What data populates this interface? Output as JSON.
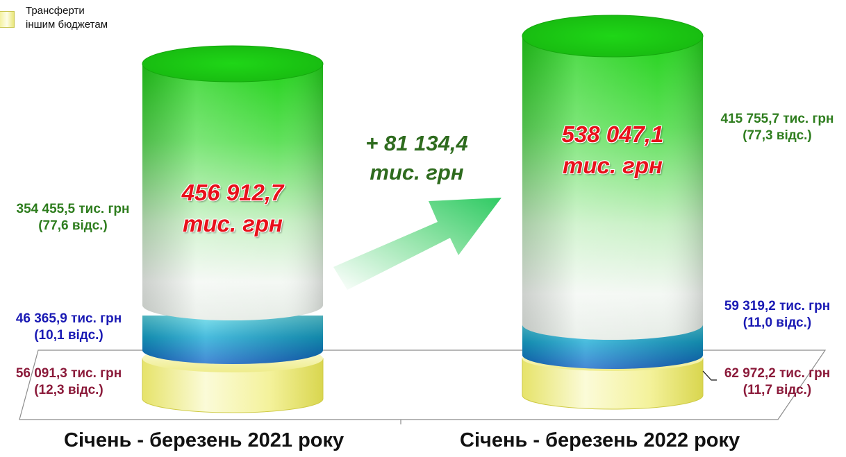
{
  "legend": {
    "items": [
      {
        "label_line1": "Трансферти",
        "label_line2": "іншим бюджетам",
        "color": "#f2f08c"
      }
    ]
  },
  "colors": {
    "green": "#2e7d1e",
    "blue": "#1a1ab4",
    "red": "#8b1a3a",
    "total": "#e8101a"
  },
  "chart_data": {
    "type": "bar",
    "stacked": true,
    "categories": [
      "Січень - березень 2021 року",
      "Січень - березень 2022 року"
    ],
    "series": [
      {
        "name": "Трансферти іншим бюджетам",
        "values": [
          56091.3,
          62972.2
        ],
        "shares": [
          12.3,
          11.7
        ],
        "color": "#f2f08c"
      },
      {
        "values": [
          46365.9,
          59319.2
        ],
        "shares": [
          10.1,
          11.0
        ],
        "color": "#1fb6d6"
      },
      {
        "values": [
          354455.5,
          415755.7
        ],
        "shares": [
          77.6,
          77.3
        ],
        "color": "#3ddc2c"
      }
    ],
    "totals": [
      456912.7,
      538047.1
    ],
    "delta": 81134.4
  },
  "labels": {
    "left": {
      "total_value": "456 912,7",
      "total_unit": "тис. грн",
      "green_value": "354 455,5 тис. грн",
      "green_share": "(77,6 відс.)",
      "blue_value": "46 365,9 тис. грн",
      "blue_share": "(10,1 відс.)",
      "red_value": "56 091,3 тис. грн",
      "red_share": "(12,3 відс.)",
      "period": "Січень - березень 2021 року"
    },
    "right": {
      "total_value": "538 047,1",
      "total_unit": "тис. грн",
      "green_value": "415 755,7 тис. грн",
      "green_share": "(77,3 відс.)",
      "blue_value": "59 319,2 тис. грн",
      "blue_share": "(11,0 відс.)",
      "red_value": "62 972,2 тис. грн",
      "red_share": "(11,7 відс.)",
      "period": "Січень - березень 2022 року"
    },
    "delta_value": "+ 81 134,4",
    "delta_unit": "тис. грн"
  }
}
